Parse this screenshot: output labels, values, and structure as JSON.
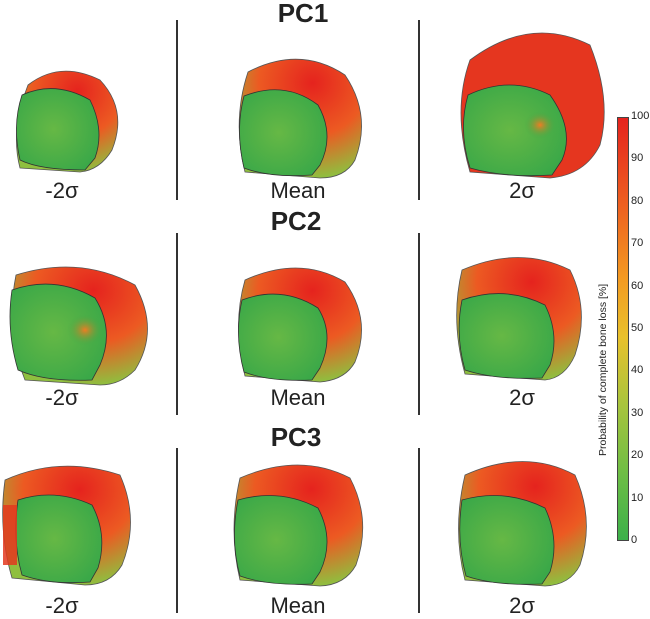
{
  "rows": [
    {
      "title": "PC1",
      "labels": [
        "-2σ",
        "Mean",
        "2σ"
      ]
    },
    {
      "title": "PC2",
      "labels": [
        "-2σ",
        "Mean",
        "2σ"
      ]
    },
    {
      "title": "PC3",
      "labels": [
        "-2σ",
        "Mean",
        "2σ"
      ]
    }
  ],
  "colorbar": {
    "title": "Probability of complete bone loss [%]",
    "ticks": [
      "100",
      "90",
      "80",
      "70",
      "60",
      "50",
      "40",
      "30",
      "20",
      "10",
      "0"
    ],
    "colors": {
      "low": "#3cb04a",
      "mid": "#e8c12c",
      "high": "#e5231e"
    }
  }
}
